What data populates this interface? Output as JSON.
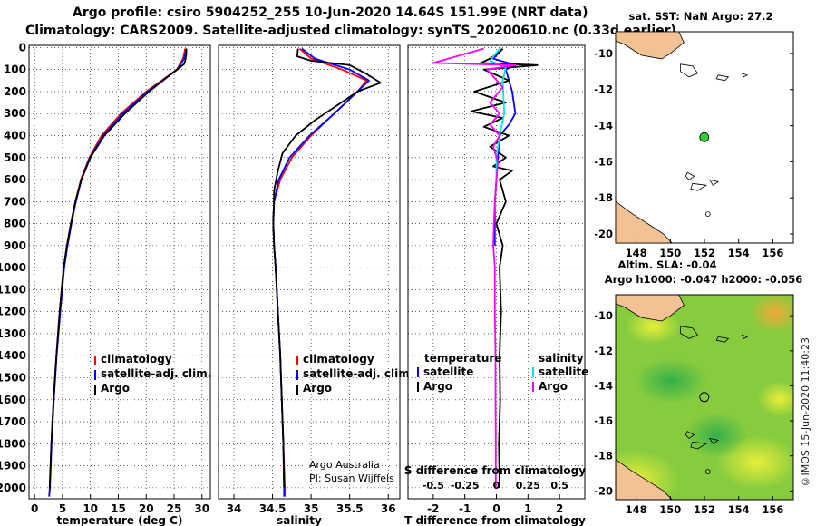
{
  "header": {
    "title_line1": "Argo profile: csiro 5904252_255 10-Jun-2020 14.64S 151.99E (NRT data)",
    "title_line2": "Climatology: CARS2009. Satellite-adjusted climatology: synTS_20200610.nc (0.33d earlier)"
  },
  "colors": {
    "argo": "#000000",
    "climatology": "#ff0000",
    "satellite": "#0000ff",
    "sat_salinity": "#00e5e5",
    "argo_salinity_diff": "#ff00ff",
    "land": "#f2c194",
    "float_marker": "#33cc33"
  },
  "chart_data": [
    {
      "type": "line",
      "name": "temperature-profile",
      "xlabel": "temperature (deg C)",
      "ylabel": "",
      "xlim": [
        -1,
        31.5
      ],
      "ylim": [
        2050,
        -10
      ],
      "x_ticks": [
        0,
        5,
        10,
        15,
        20,
        25,
        30
      ],
      "y_ticks": [
        0,
        100,
        200,
        300,
        400,
        500,
        600,
        700,
        800,
        900,
        1000,
        1100,
        1200,
        1300,
        1400,
        1500,
        1600,
        1700,
        1800,
        1900,
        2000
      ],
      "legend": [
        "climatology",
        "satellite-adj. clim.",
        "Argo"
      ],
      "series": [
        {
          "name": "climatology",
          "color": "#ff0000",
          "points": [
            [
              27.0,
              5
            ],
            [
              26.6,
              50
            ],
            [
              25.5,
              100
            ],
            [
              20.0,
              200
            ],
            [
              15.5,
              300
            ],
            [
              12.0,
              400
            ],
            [
              9.8,
              500
            ],
            [
              8.3,
              600
            ],
            [
              7.3,
              700
            ],
            [
              6.5,
              800
            ],
            [
              5.8,
              900
            ],
            [
              5.2,
              1000
            ],
            [
              4.5,
              1200
            ],
            [
              3.9,
              1400
            ],
            [
              3.4,
              1600
            ],
            [
              3.0,
              1800
            ],
            [
              2.7,
              2000
            ],
            [
              2.6,
              2040
            ]
          ]
        },
        {
          "name": "satellite-adj. clim.",
          "color": "#0000ff",
          "points": [
            [
              27.2,
              5
            ],
            [
              26.8,
              50
            ],
            [
              25.6,
              100
            ],
            [
              20.2,
              200
            ],
            [
              15.8,
              300
            ],
            [
              12.3,
              400
            ],
            [
              9.9,
              500
            ],
            [
              8.4,
              600
            ],
            [
              7.4,
              700
            ],
            [
              6.6,
              800
            ],
            [
              5.9,
              900
            ],
            [
              5.3,
              1000
            ],
            [
              4.6,
              1200
            ],
            [
              3.95,
              1400
            ],
            [
              3.45,
              1600
            ],
            [
              3.05,
              1800
            ],
            [
              2.75,
              2000
            ],
            [
              2.6,
              2040
            ]
          ]
        },
        {
          "name": "Argo",
          "color": "#000000",
          "points": [
            [
              27.2,
              5
            ],
            [
              27.2,
              30
            ],
            [
              27.0,
              60
            ],
            [
              26.8,
              75
            ],
            [
              25.0,
              110
            ],
            [
              20.5,
              200
            ],
            [
              16.2,
              300
            ],
            [
              12.5,
              400
            ],
            [
              10.0,
              500
            ],
            [
              8.4,
              600
            ],
            [
              7.3,
              700
            ],
            [
              6.5,
              800
            ],
            [
              5.8,
              900
            ],
            [
              5.2,
              1000
            ],
            [
              4.5,
              1200
            ],
            [
              3.9,
              1400
            ],
            [
              3.4,
              1600
            ],
            [
              3.0,
              1800
            ],
            [
              2.7,
              2000
            ]
          ]
        }
      ]
    },
    {
      "type": "line",
      "name": "salinity-profile",
      "xlabel": "salinity",
      "xlim": [
        33.8,
        36.15
      ],
      "ylim": [
        2050,
        -10
      ],
      "x_ticks": [
        34,
        34.5,
        35,
        35.5,
        36
      ],
      "legend": [
        "climatology",
        "satellite-adj. clim.",
        "Argo"
      ],
      "series": [
        {
          "name": "climatology",
          "color": "#ff0000",
          "points": [
            [
              34.85,
              5
            ],
            [
              35.0,
              50
            ],
            [
              35.4,
              100
            ],
            [
              35.72,
              150
            ],
            [
              35.6,
              200
            ],
            [
              35.3,
              300
            ],
            [
              35.0,
              400
            ],
            [
              34.75,
              500
            ],
            [
              34.6,
              600
            ],
            [
              34.52,
              700
            ],
            [
              34.51,
              800
            ],
            [
              34.52,
              900
            ],
            [
              34.54,
              1000
            ],
            [
              34.57,
              1200
            ],
            [
              34.6,
              1400
            ],
            [
              34.62,
              1600
            ],
            [
              34.64,
              1800
            ],
            [
              34.66,
              2000
            ],
            [
              34.66,
              2040
            ]
          ]
        },
        {
          "name": "satellite-adj. clim.",
          "color": "#0000ff",
          "points": [
            [
              34.88,
              5
            ],
            [
              35.05,
              50
            ],
            [
              35.5,
              100
            ],
            [
              35.75,
              150
            ],
            [
              35.6,
              200
            ],
            [
              35.3,
              300
            ],
            [
              34.98,
              400
            ],
            [
              34.72,
              500
            ],
            [
              34.58,
              600
            ],
            [
              34.52,
              700
            ],
            [
              34.51,
              800
            ],
            [
              34.52,
              900
            ],
            [
              34.54,
              1000
            ],
            [
              34.57,
              1200
            ],
            [
              34.6,
              1400
            ],
            [
              34.62,
              1600
            ],
            [
              34.64,
              1800
            ],
            [
              34.65,
              2000
            ],
            [
              34.65,
              2040
            ]
          ]
        },
        {
          "name": "Argo",
          "color": "#000000",
          "points": [
            [
              34.83,
              5
            ],
            [
              34.82,
              40
            ],
            [
              35.0,
              60
            ],
            [
              35.5,
              80
            ],
            [
              35.72,
              120
            ],
            [
              35.9,
              160
            ],
            [
              35.6,
              200
            ],
            [
              35.35,
              260
            ],
            [
              35.05,
              330
            ],
            [
              34.8,
              400
            ],
            [
              34.63,
              480
            ],
            [
              34.57,
              560
            ],
            [
              34.52,
              650
            ],
            [
              34.51,
              800
            ],
            [
              34.52,
              900
            ],
            [
              34.54,
              1000
            ],
            [
              34.57,
              1200
            ],
            [
              34.6,
              1400
            ],
            [
              34.62,
              1600
            ],
            [
              34.64,
              1800
            ],
            [
              34.65,
              2000
            ]
          ]
        }
      ]
    },
    {
      "type": "line",
      "name": "difference-profile",
      "xlabel": "T difference from climatology",
      "top_axis_label": "S difference from climatology",
      "xlim": [
        -2.8,
        2.8
      ],
      "ylim": [
        2050,
        -10
      ],
      "x_ticks": [
        -2,
        -1,
        0,
        1,
        2
      ],
      "s_ticks": [
        "-0.5",
        "-0.25",
        "0",
        "0.25",
        "0.5"
      ],
      "legend": {
        "temperature_header": "temperature",
        "salinity_header": "salinity",
        "t_satellite": "satellite",
        "t_argo": "Argo",
        "s_satellite": "satellite",
        "s_argo": "Argo"
      },
      "series": [
        {
          "name": "T satellite",
          "color": "#0000ff",
          "points": [
            [
              0.2,
              5
            ],
            [
              -0.1,
              50
            ],
            [
              0.6,
              80
            ],
            [
              0.3,
              100
            ],
            [
              0.5,
              200
            ],
            [
              0.6,
              300
            ],
            [
              0.4,
              350
            ],
            [
              0.1,
              400
            ],
            [
              0.05,
              500
            ],
            [
              0.0,
              600
            ],
            [
              -0.05,
              700
            ],
            [
              -0.05,
              800
            ],
            [
              -0.05,
              900
            ]
          ]
        },
        {
          "name": "T Argo",
          "color": "#000000",
          "points": [
            [
              0.2,
              5
            ],
            [
              0.1,
              20
            ],
            [
              -0.2,
              50
            ],
            [
              -0.5,
              70
            ],
            [
              1.3,
              80
            ],
            [
              -0.4,
              100
            ],
            [
              0.4,
              150
            ],
            [
              -0.7,
              200
            ],
            [
              0.3,
              250
            ],
            [
              -0.8,
              290
            ],
            [
              0.2,
              320
            ],
            [
              -0.4,
              360
            ],
            [
              0.4,
              400
            ],
            [
              -0.2,
              450
            ],
            [
              0.3,
              500
            ],
            [
              -0.1,
              540
            ],
            [
              0.5,
              560
            ],
            [
              0.1,
              600
            ],
            [
              0.3,
              700
            ],
            [
              0.0,
              800
            ],
            [
              0.2,
              900
            ],
            [
              0.1,
              1000
            ],
            [
              0.15,
              1200
            ],
            [
              0.1,
              1400
            ],
            [
              0.12,
              1600
            ],
            [
              0.08,
              1800
            ],
            [
              0.1,
              2000
            ]
          ]
        },
        {
          "name": "S satellite",
          "color": "#00e5e5",
          "points": [
            [
              0.1,
              5
            ],
            [
              -0.2,
              60
            ],
            [
              0.3,
              90
            ],
            [
              0.2,
              150
            ],
            [
              0.25,
              300
            ],
            [
              0.1,
              400
            ],
            [
              0.0,
              500
            ],
            [
              0.0,
              600
            ]
          ]
        },
        {
          "name": "S Argo",
          "color": "#ff00ff",
          "points": [
            [
              -0.4,
              5
            ],
            [
              -2.0,
              70
            ],
            [
              0.6,
              80
            ],
            [
              -0.3,
              100
            ],
            [
              0.2,
              180
            ],
            [
              -0.2,
              250
            ],
            [
              0.1,
              300
            ],
            [
              -0.2,
              350
            ],
            [
              0.1,
              400
            ],
            [
              -0.1,
              450
            ],
            [
              0.05,
              520
            ],
            [
              0.0,
              600
            ],
            [
              -0.05,
              700
            ],
            [
              -0.08,
              800
            ],
            [
              -0.1,
              900
            ],
            [
              -0.05,
              1000
            ],
            [
              -0.05,
              1200
            ],
            [
              -0.03,
              1400
            ],
            [
              -0.03,
              1600
            ],
            [
              -0.02,
              1800
            ],
            [
              -0.02,
              2000
            ]
          ]
        }
      ]
    },
    {
      "type": "map",
      "name": "sst-map",
      "title": "sat. SST: NaN Argo: 27.2",
      "lon_ticks": [
        148,
        150,
        152,
        154,
        156
      ],
      "lat_ticks": [
        -10,
        -12,
        -14,
        -16,
        -18,
        -20
      ],
      "lon_range": [
        146.8,
        157.2
      ],
      "lat_range": [
        -20.5,
        -8.8
      ],
      "float_position": [
        151.99,
        -14.64
      ]
    },
    {
      "type": "heatmap",
      "name": "sla-map",
      "title_line1": "Altim. SLA: -0.04",
      "title_line2": "Argo h1000: -0.047 h2000: -0.056",
      "lon_ticks": [
        148,
        150,
        152,
        154,
        156
      ],
      "lat_ticks": [
        -10,
        -12,
        -14,
        -16,
        -18,
        -20
      ],
      "lon_range": [
        146.8,
        157.2
      ],
      "lat_range": [
        -20.5,
        -8.8
      ],
      "float_position": [
        151.99,
        -14.64
      ]
    }
  ],
  "annotations": {
    "argo_credit_line1": "Argo Australia",
    "argo_credit_line2": "PI: Susan Wijffels",
    "imos_stamp": "©IMOS 15-Jun-2020 11:40:23"
  }
}
